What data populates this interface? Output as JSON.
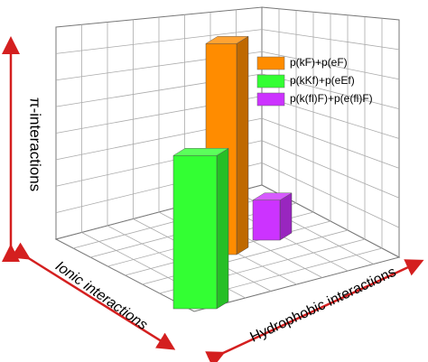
{
  "chart_data": {
    "type": "bar3d",
    "ylabel": "π-interactions",
    "xlabel": "Ionic interactions",
    "zlabel": "Hydrophobic interactions",
    "series": [
      {
        "name": "p(kF)+p(eF)",
        "color": "#ff8c00",
        "values": [
          9.5
        ]
      },
      {
        "name": "p(kKf)+p(eEf)",
        "color": "#33ff33",
        "values": [
          6.9
        ]
      },
      {
        "name": "p(k(fl)F)+p(e(fl)F)",
        "color": "#cc33ff",
        "values": [
          1.8
        ]
      }
    ]
  }
}
